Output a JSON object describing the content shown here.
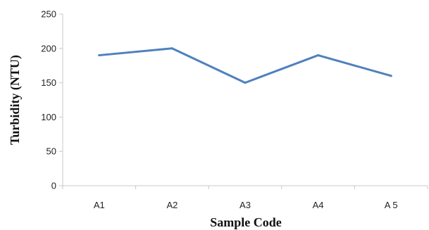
{
  "chart_data": {
    "type": "line",
    "title": "",
    "xlabel": "Sample Code",
    "ylabel": "Turbidity (NTU)",
    "categories": [
      "A1",
      "A2",
      "A3",
      "A4",
      "A 5"
    ],
    "series": [
      {
        "values": [
          190,
          200,
          150,
          190,
          160
        ]
      }
    ],
    "ylim": [
      0,
      250
    ],
    "yticks": [
      "0",
      "50",
      "100",
      "150",
      "200",
      "250"
    ],
    "grid": false,
    "legend": "none",
    "colors": {
      "line": "#4f81bd",
      "axis": "#c8c8c8"
    }
  }
}
